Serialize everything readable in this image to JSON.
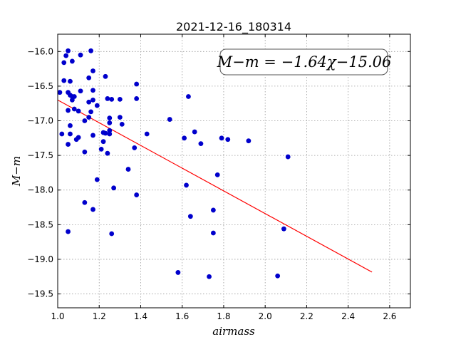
{
  "chart_data": {
    "type": "scatter",
    "title": "2021-12-16_180314",
    "xlabel": "airmass",
    "ylabel": "M−m",
    "xlim": [
      1.0,
      2.7
    ],
    "ylim": [
      -19.7,
      -15.75
    ],
    "y_inverted": true,
    "grid": true,
    "xticks": [
      "1.0",
      "1.2",
      "1.4",
      "1.6",
      "1.8",
      "2.0",
      "2.2",
      "2.4",
      "2.6"
    ],
    "xtick_values": [
      1.0,
      1.2,
      1.4,
      1.6,
      1.8,
      2.0,
      2.2,
      2.4,
      2.6
    ],
    "yticks": [
      "−16.0",
      "−16.5",
      "−17.0",
      "−17.5",
      "−18.0",
      "−18.5",
      "−19.0",
      "−19.5"
    ],
    "ytick_values": [
      -16.0,
      -16.5,
      -17.0,
      -17.5,
      -18.0,
      -18.5,
      -19.0,
      -19.5
    ],
    "annotation": "M−m = −1.64χ−15.06",
    "fit": {
      "slope": -1.64,
      "intercept": -15.06,
      "x_range": [
        1.0,
        2.515
      ],
      "color": "#ff0000"
    },
    "point_color": "#0000cc",
    "points": [
      [
        1.01,
        -16.59
      ],
      [
        1.02,
        -17.19
      ],
      [
        1.03,
        -16.16
      ],
      [
        1.03,
        -16.42
      ],
      [
        1.04,
        -16.06
      ],
      [
        1.05,
        -15.99
      ],
      [
        1.05,
        -16.59
      ],
      [
        1.05,
        -16.85
      ],
      [
        1.05,
        -17.34
      ],
      [
        1.05,
        -18.6
      ],
      [
        1.06,
        -16.43
      ],
      [
        1.06,
        -16.63
      ],
      [
        1.06,
        -17.07
      ],
      [
        1.06,
        -17.19
      ],
      [
        1.07,
        -16.14
      ],
      [
        1.07,
        -16.65
      ],
      [
        1.07,
        -16.7
      ],
      [
        1.08,
        -16.65
      ],
      [
        1.08,
        -16.83
      ],
      [
        1.09,
        -17.27
      ],
      [
        1.1,
        -17.24
      ],
      [
        1.1,
        -16.86
      ],
      [
        1.11,
        -16.05
      ],
      [
        1.11,
        -16.57
      ],
      [
        1.13,
        -17.0
      ],
      [
        1.13,
        -17.45
      ],
      [
        1.13,
        -18.18
      ],
      [
        1.15,
        -16.38
      ],
      [
        1.15,
        -16.95
      ],
      [
        1.15,
        -16.73
      ],
      [
        1.16,
        -15.99
      ],
      [
        1.16,
        -16.87
      ],
      [
        1.17,
        -16.28
      ],
      [
        1.17,
        -16.7
      ],
      [
        1.17,
        -16.56
      ],
      [
        1.17,
        -17.21
      ],
      [
        1.17,
        -18.28
      ],
      [
        1.19,
        -16.78
      ],
      [
        1.19,
        -17.85
      ],
      [
        1.21,
        -17.41
      ],
      [
        1.22,
        -17.17
      ],
      [
        1.22,
        -17.3
      ],
      [
        1.23,
        -16.36
      ],
      [
        1.23,
        -17.18
      ],
      [
        1.24,
        -16.68
      ],
      [
        1.24,
        -17.47
      ],
      [
        1.25,
        -16.96
      ],
      [
        1.25,
        -17.03
      ],
      [
        1.25,
        -17.14
      ],
      [
        1.25,
        -17.19
      ],
      [
        1.26,
        -16.69
      ],
      [
        1.26,
        -18.63
      ],
      [
        1.27,
        -17.97
      ],
      [
        1.3,
        -16.69
      ],
      [
        1.3,
        -16.95
      ],
      [
        1.31,
        -17.05
      ],
      [
        1.34,
        -17.7
      ],
      [
        1.37,
        -17.39
      ],
      [
        1.38,
        -16.68
      ],
      [
        1.38,
        -16.47
      ],
      [
        1.38,
        -18.07
      ],
      [
        1.43,
        -17.19
      ],
      [
        1.54,
        -16.98
      ],
      [
        1.58,
        -19.19
      ],
      [
        1.61,
        -17.25
      ],
      [
        1.62,
        -17.93
      ],
      [
        1.63,
        -16.65
      ],
      [
        1.64,
        -18.38
      ],
      [
        1.66,
        -17.16
      ],
      [
        1.69,
        -17.33
      ],
      [
        1.73,
        -19.25
      ],
      [
        1.75,
        -18.29
      ],
      [
        1.75,
        -18.62
      ],
      [
        1.77,
        -17.78
      ],
      [
        1.79,
        -17.25
      ],
      [
        1.82,
        -17.27
      ],
      [
        1.92,
        -17.29
      ],
      [
        2.06,
        -19.24
      ],
      [
        2.09,
        -18.56
      ],
      [
        2.11,
        -17.52
      ]
    ]
  }
}
